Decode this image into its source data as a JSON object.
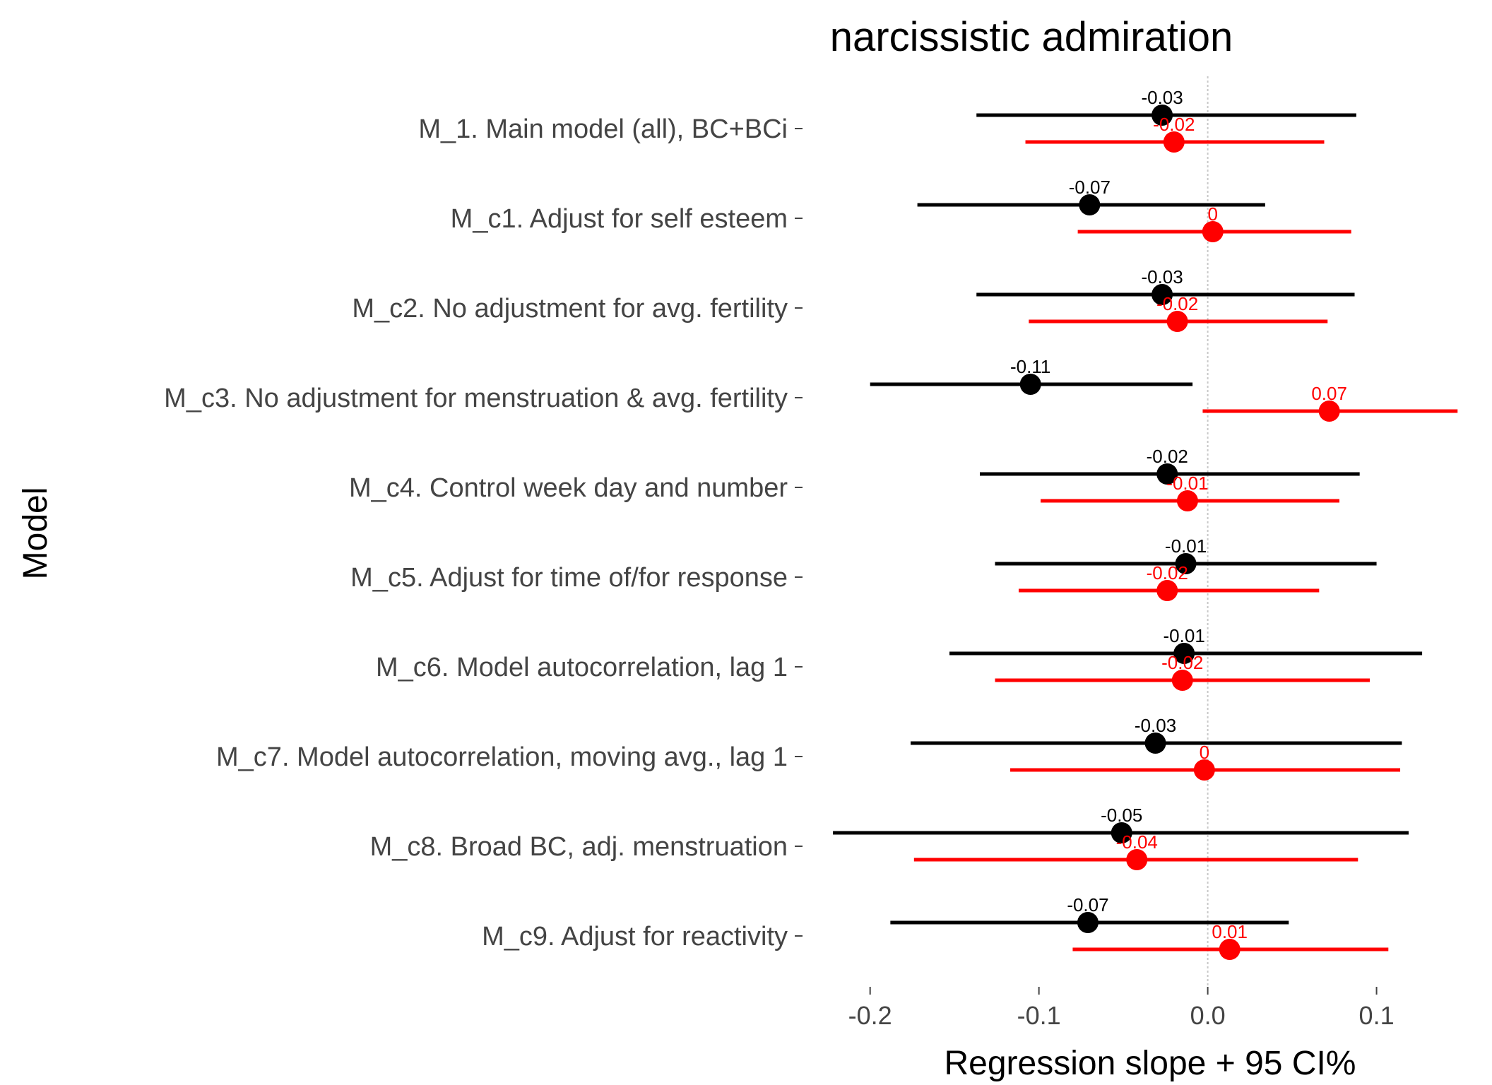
{
  "chart_data": {
    "type": "scatter",
    "title": "narcissistic admiration",
    "xlabel": "Regression slope + 95 CI%",
    "ylabel": "Model",
    "xlim": [
      -0.23,
      0.155
    ],
    "xticks": [
      -0.2,
      -0.1,
      0.0,
      0.1
    ],
    "xtick_labels": [
      "-0.2",
      "-0.1",
      "0.0",
      "0.1"
    ],
    "reference_line": 0,
    "grid": false,
    "categories": [
      "M_1. Main model (all), BC+BCi",
      "M_c1. Adjust for self esteem",
      "M_c2. No adjustment for avg. fertility",
      "M_c3. No adjustment for menstruation & avg. fertility",
      "M_c4. Control week day and number",
      "M_c5. Adjust for time of/for response",
      "M_c6. Model autocorrelation, lag 1",
      "M_c7. Model autocorrelation, moving avg., lag 1",
      "M_c8. Broad BC, adj. menstruation",
      "M_c9. Adjust for reactivity"
    ],
    "series": [
      {
        "color": "#000000",
        "estimates": [
          -0.027,
          -0.07,
          -0.027,
          -0.105,
          -0.024,
          -0.013,
          -0.014,
          -0.031,
          -0.051,
          -0.071
        ],
        "lower": [
          -0.137,
          -0.172,
          -0.137,
          -0.2,
          -0.135,
          -0.126,
          -0.153,
          -0.176,
          -0.222,
          -0.188
        ],
        "upper": [
          0.088,
          0.034,
          0.087,
          -0.009,
          0.09,
          0.1,
          0.127,
          0.115,
          0.119,
          0.048
        ],
        "labels": [
          "-0.03",
          "-0.07",
          "-0.03",
          "-0.11",
          "-0.02",
          "-0.01",
          "-0.01",
          "-0.03",
          "-0.05",
          "-0.07"
        ]
      },
      {
        "color": "#ff0000",
        "estimates": [
          -0.02,
          0.003,
          -0.018,
          0.072,
          -0.012,
          -0.024,
          -0.015,
          -0.002,
          -0.042,
          0.013
        ],
        "lower": [
          -0.108,
          -0.077,
          -0.106,
          -0.003,
          -0.099,
          -0.112,
          -0.126,
          -0.117,
          -0.174,
          -0.08
        ],
        "upper": [
          0.069,
          0.085,
          0.071,
          0.148,
          0.078,
          0.066,
          0.096,
          0.114,
          0.089,
          0.107
        ],
        "labels": [
          "-0.02",
          "0",
          "-0.02",
          "0.07",
          "-0.01",
          "-0.02",
          "-0.02",
          "0",
          "-0.04",
          "0.01"
        ]
      }
    ]
  }
}
